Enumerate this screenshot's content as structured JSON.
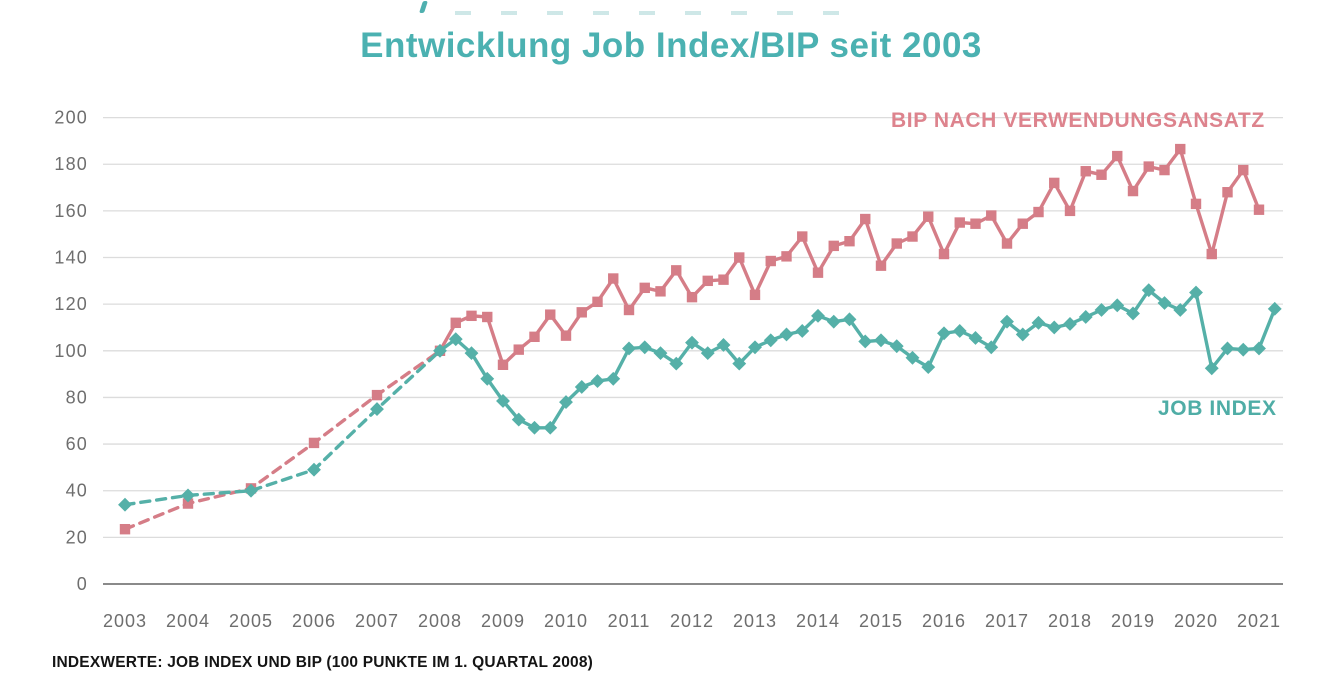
{
  "accent_colors": {
    "title_teal": "#4bb1b1",
    "bip_pink": "#d57d87",
    "job_index_teal": "#55b0a8",
    "grid_gray": "#dcdcdc",
    "zero_axis_gray": "#8a8a8a",
    "tick_label_gray": "#6e6e6e",
    "footnote_black": "#141414"
  },
  "chart_data": {
    "type": "line",
    "title": "Entwicklung Job Index/BIP seit 2003",
    "footnote": "INDEXWERTE: JOB INDEX UND BIP (100 PUNKTE IM 1. QUARTAL 2008)",
    "grid": "horizontal-only",
    "legend_position": "inline-labels-near-lines",
    "x_axis": {
      "tick_years": [
        2003,
        2004,
        2005,
        2006,
        2007,
        2008,
        2009,
        2010,
        2011,
        2012,
        2013,
        2014,
        2015,
        2016,
        2017,
        2018,
        2019,
        2020,
        2021
      ]
    },
    "y_axis": {
      "min": 0,
      "max": 200,
      "step": 20,
      "tick_labels": [
        "0",
        "20",
        "40",
        "60",
        "80",
        "100",
        "120",
        "140",
        "160",
        "180",
        "200"
      ]
    },
    "notes": "Annual points 2003-2007 connected with dashed lines; quarterly points from Q1 2008 (index = 100) connected with solid lines.",
    "series": [
      {
        "name": "BIP NACH VERWENDUNGSANSATZ",
        "color": "#d57d87",
        "marker": "square",
        "annual": {
          "years": [
            2003,
            2004,
            2005,
            2006,
            2007
          ],
          "values": [
            23.5,
            34.5,
            41,
            60.5,
            81
          ]
        },
        "quarterly": {
          "start_year": 2008,
          "start_quarter": 1,
          "values": [
            100,
            112,
            115,
            114.5,
            94,
            100.5,
            106,
            115.5,
            106.5,
            116.5,
            121,
            131,
            117.5,
            127,
            125.5,
            134.5,
            123,
            130,
            130.5,
            140,
            124,
            138.5,
            140.5,
            149,
            133.5,
            145,
            147,
            156.5,
            136.5,
            146,
            149,
            157.5,
            141.5,
            155,
            154.5,
            158,
            146,
            154.5,
            159.5,
            172,
            160,
            177,
            175.5,
            183.5,
            168.5,
            179,
            177.5,
            186.5,
            163,
            141.5,
            168,
            177.5,
            160.5
          ]
        }
      },
      {
        "name": "JOB INDEX",
        "color": "#55b0a8",
        "marker": "diamond",
        "annual": {
          "years": [
            2003,
            2004,
            2005,
            2006,
            2007
          ],
          "values": [
            34,
            38,
            40,
            49,
            75
          ]
        },
        "quarterly": {
          "start_year": 2008,
          "start_quarter": 1,
          "values": [
            100,
            105,
            99,
            88,
            78.5,
            70.5,
            67,
            67,
            78,
            84.5,
            87,
            88,
            101,
            101.5,
            99,
            94.5,
            103.5,
            99,
            102.5,
            94.5,
            101.5,
            104.5,
            107,
            108.5,
            115,
            112.5,
            113.5,
            104,
            104.5,
            102,
            97,
            93,
            107.5,
            108.5,
            105.5,
            101.5,
            112.5,
            107,
            112,
            110,
            111.5,
            114.5,
            117.5,
            119.5,
            116,
            126,
            120.5,
            117.5,
            125,
            92.5,
            101,
            100.5,
            101,
            118
          ]
        }
      }
    ]
  }
}
